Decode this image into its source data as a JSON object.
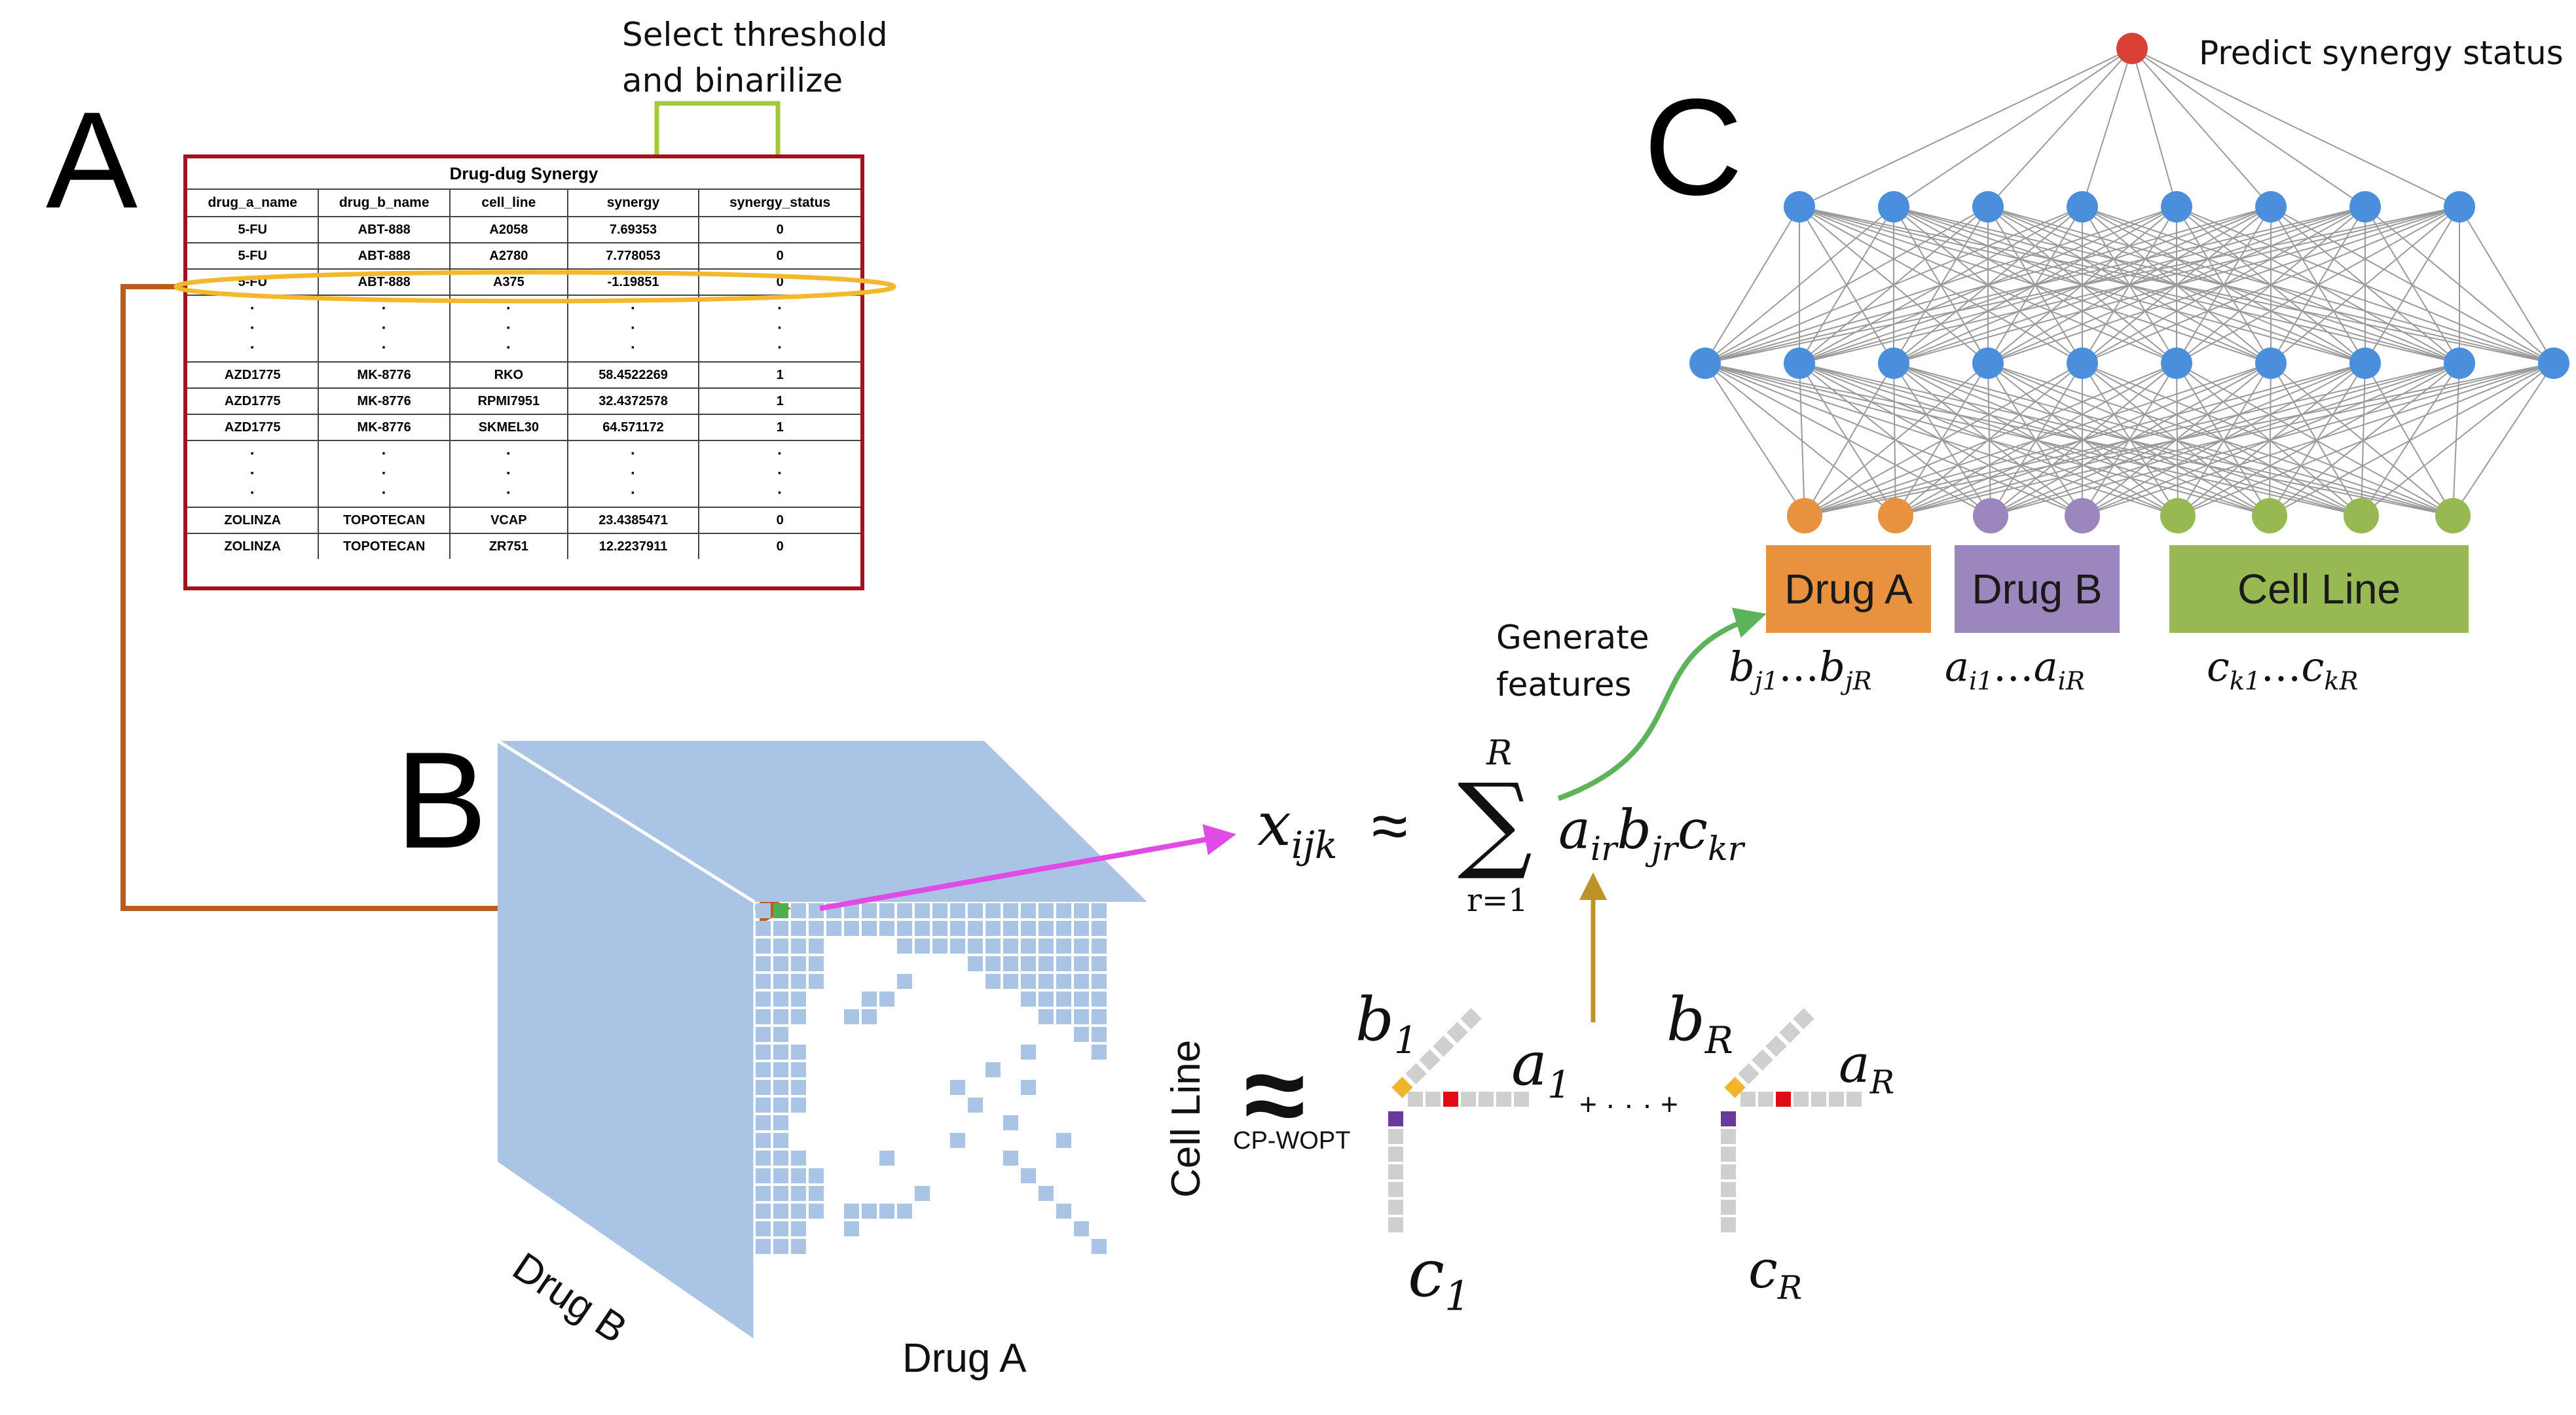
{
  "panels": {
    "a": "A",
    "b": "B",
    "c": "C"
  },
  "annotations": {
    "threshold_line1": "Select threshold",
    "threshold_line2": "and binarilize",
    "generate_line1": "Generate",
    "generate_line2": "features",
    "predict": "Predict synergy status",
    "method": "CP-WOPT",
    "approx_symbol": "≈"
  },
  "table": {
    "title": "Drug-dug Synergy",
    "columns": [
      "drug_a_name",
      "drug_b_name",
      "cell_line",
      "synergy",
      "synergy_status"
    ],
    "rows_top": [
      [
        "5-FU",
        "ABT-888",
        "A2058",
        "7.69353",
        "0"
      ],
      [
        "5-FU",
        "ABT-888",
        "A2780",
        "7.778053",
        "0"
      ],
      [
        "5-FU",
        "ABT-888",
        "A375",
        "-1.19851",
        "0"
      ]
    ],
    "rows_mid": [
      [
        "AZD1775",
        "MK-8776",
        "RKO",
        "58.4522269",
        "1"
      ],
      [
        "AZD1775",
        "MK-8776",
        "RPMI7951",
        "32.4372578",
        "1"
      ],
      [
        "AZD1775",
        "MK-8776",
        "SKMEL30",
        "64.571172",
        "1"
      ]
    ],
    "rows_bottom": [
      [
        "ZOLINZA",
        "TOPOTECAN",
        "VCAP",
        "23.4385471",
        "0"
      ],
      [
        "ZOLINZA",
        "TOPOTECAN",
        "ZR751",
        "12.2237911",
        "0"
      ]
    ],
    "ellipsis": "·\n·\n·"
  },
  "tensor": {
    "axis_drug_a": "Drug A",
    "axis_drug_b": "Drug B",
    "axis_cell_line": "Cell Line"
  },
  "cp_factors": {
    "b1_base": "b",
    "b1_sub": "1",
    "a1_base": "a",
    "a1_sub": "1",
    "c1_base": "c",
    "c1_sub": "1",
    "bR_base": "b",
    "bR_sub": "R",
    "aR_base": "a",
    "aR_sub": "R",
    "cR_base": "c",
    "cR_sub": "R",
    "plus_dots": "+ · · · +"
  },
  "equation": {
    "lhs_base": "x",
    "lhs_sub": "ijk",
    "approx": "≈",
    "sum_symbol": "∑",
    "sum_upper": "R",
    "sum_lower": "r=1",
    "term_a": "a",
    "term_a_sub": "ir",
    "term_b": "b",
    "term_b_sub": "jr",
    "term_c": "c",
    "term_c_sub": "kr"
  },
  "network": {
    "input_groups": [
      {
        "label": "Drug A",
        "color": "#e8913e",
        "features": "b",
        "features_sub_start": "j1",
        "features_sub_end": "jR"
      },
      {
        "label": "Drug B",
        "color": "#9b86bd",
        "features": "a",
        "features_sub_start": "i1",
        "features_sub_end": "iR"
      },
      {
        "label": "Cell Line",
        "color": "#97b852",
        "features": "c",
        "features_sub_start": "k1",
        "features_sub_end": "kR"
      }
    ],
    "hidden_node_color": "#4a8fdc",
    "output_node_color": "#d84135",
    "edge_color": "#9a9a9a",
    "ellipsis": "…"
  },
  "colors": {
    "table_border": "#a3141c",
    "highlight_ellipse": "#f4b82e",
    "threshold_arrow": "#a2c93a",
    "link_arrow": "#b65d1f",
    "tensor_face": "#aac4e6",
    "tensor_cell": "#aac4e6",
    "selected_cell": "#4caf50",
    "magenta_arrow": "#e04be6",
    "gold_arrow": "#bd9327",
    "green_arrow": "#5db35a",
    "factor_gray": "#cfcfcf",
    "factor_yellow": "#f0b52d",
    "factor_red": "#e00b16",
    "factor_purple": "#6a3a9a"
  }
}
